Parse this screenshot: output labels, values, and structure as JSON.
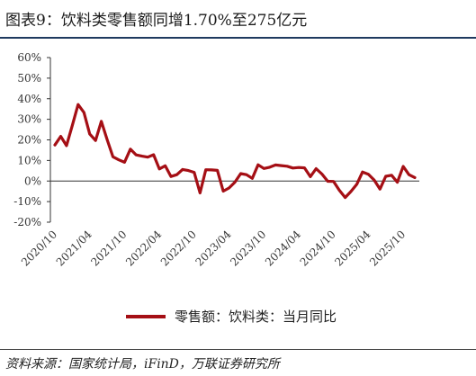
{
  "header": {
    "title": "图表9：饮料类零售额同增1.70%至275亿元"
  },
  "footer": {
    "source": "资料来源：国家统计局，iFinD，万联证券研究所"
  },
  "chart_data": {
    "type": "line",
    "y_tick_labels": [
      "-20%",
      "-10%",
      "0%",
      "10%",
      "20%",
      "30%",
      "40%",
      "50%",
      "60%"
    ],
    "ylim": [
      -20,
      60
    ],
    "y_ticks": [
      -20,
      -10,
      0,
      10,
      20,
      30,
      40,
      50,
      60
    ],
    "x_tick_labels": [
      "2020/10",
      "2021/04",
      "2021/10",
      "2022/04",
      "2022/10",
      "2023/04",
      "2023/10",
      "2024/04",
      "2024/10",
      "2025/04",
      "2025/10"
    ],
    "x_tick_index": [
      0,
      6,
      12,
      18,
      24,
      30,
      36,
      42,
      48,
      54,
      60
    ],
    "grid": false,
    "legend_position": "bottom",
    "series": [
      {
        "name": "零售额：饮料类：当月同比",
        "color": "#a50f15",
        "values": [
          17.5,
          21.7,
          17.2,
          27.1,
          37.2,
          33.3,
          22.9,
          19.7,
          29.0,
          20.1,
          11.8,
          10.3,
          9.1,
          15.5,
          12.7,
          12.1,
          11.6,
          12.8,
          5.9,
          7.4,
          2.2,
          3.1,
          5.6,
          5.1,
          4.2,
          -5.8,
          5.5,
          5.4,
          5.2,
          -4.9,
          -3.4,
          -0.6,
          3.6,
          3.1,
          1.3,
          7.9,
          6.1,
          6.7,
          7.8,
          7.5,
          7.2,
          6.3,
          6.6,
          6.4,
          2.1,
          6.0,
          3.4,
          -0.1,
          -0.2,
          -4.5,
          -8.0,
          -5.1,
          -1.6,
          4.4,
          3.3,
          0.5,
          -3.9,
          2.3,
          2.8,
          -0.6,
          7.1,
          3.1,
          1.7
        ]
      }
    ]
  }
}
